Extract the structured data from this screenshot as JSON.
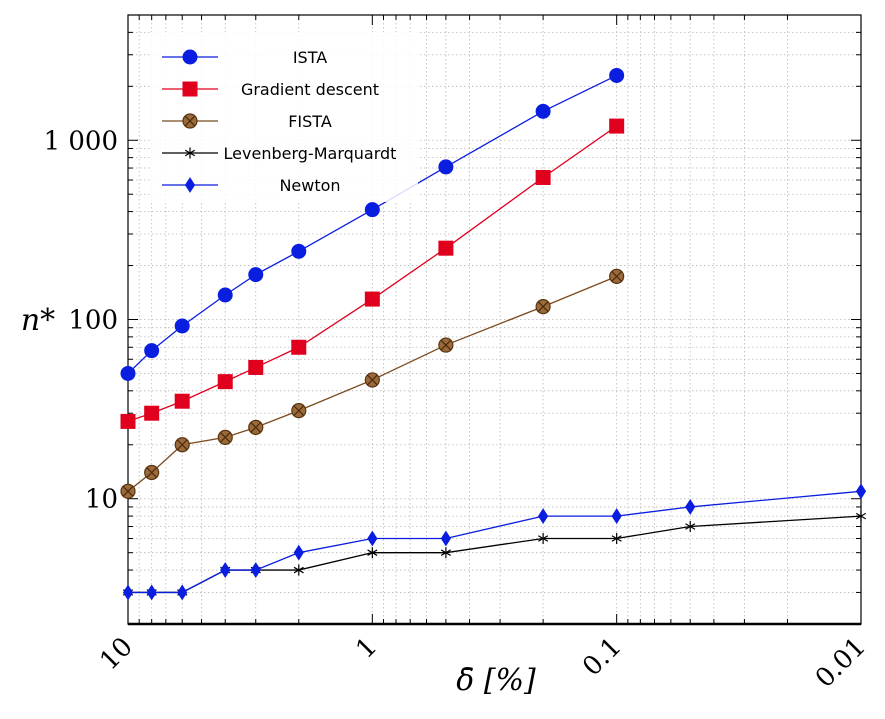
{
  "chart_data": {
    "type": "line",
    "x_scale": "log-reversed",
    "y_scale": "log",
    "xlabel": "δ̄ [%]",
    "ylabel": "n*",
    "xlim": [
      10,
      0.01
    ],
    "ylim": [
      2,
      5000
    ],
    "x_ticks": [
      {
        "value": 10,
        "label": "10"
      },
      {
        "value": 1,
        "label": "1"
      },
      {
        "value": 0.1,
        "label": "0.1"
      },
      {
        "value": 0.01,
        "label": "0.01"
      }
    ],
    "y_ticks": [
      {
        "value": 10,
        "label": "10"
      },
      {
        "value": 100,
        "label": "100"
      },
      {
        "value": 1000,
        "label": "1 000"
      }
    ],
    "grid": true,
    "legend": "top-left",
    "series": [
      {
        "name": "ISTA",
        "color": "#0a1ee0",
        "marker": "circle",
        "x": [
          10,
          8,
          6,
          4,
          3,
          2,
          1,
          0.5,
          0.2,
          0.1
        ],
        "y": [
          50,
          67,
          92,
          137,
          178,
          240,
          410,
          710,
          1450,
          2300
        ]
      },
      {
        "name": "Gradient descent",
        "color": "#e0001e",
        "marker": "square",
        "x": [
          10,
          8,
          6,
          4,
          3,
          2,
          1,
          0.5,
          0.2,
          0.1
        ],
        "y": [
          27,
          30,
          35,
          45,
          54,
          70,
          130,
          250,
          620,
          1200
        ]
      },
      {
        "name": "FISTA",
        "color": "#7b4a1e",
        "marker": "circle-x",
        "x": [
          10,
          8,
          6,
          4,
          3,
          2,
          1,
          0.5,
          0.2,
          0.1
        ],
        "y": [
          11,
          14,
          20,
          22,
          25,
          31,
          46,
          72,
          118,
          174
        ]
      },
      {
        "name": "Levenberg-Marquardt",
        "color": "#000000",
        "marker": "star",
        "x": [
          10,
          8,
          6,
          4,
          3,
          2,
          1,
          0.5,
          0.2,
          0.1,
          0.05,
          0.01
        ],
        "y": [
          3,
          3,
          3,
          4,
          4,
          4,
          5,
          5,
          6,
          6,
          7,
          8
        ]
      },
      {
        "name": "Newton",
        "color": "#0a1ee0",
        "marker": "diamond",
        "x": [
          10,
          8,
          6,
          4,
          3,
          2,
          1,
          0.5,
          0.2,
          0.1,
          0.05,
          0.01
        ],
        "y": [
          3,
          3,
          3,
          4,
          4,
          5,
          6,
          6,
          8,
          8,
          9,
          11
        ]
      }
    ]
  }
}
